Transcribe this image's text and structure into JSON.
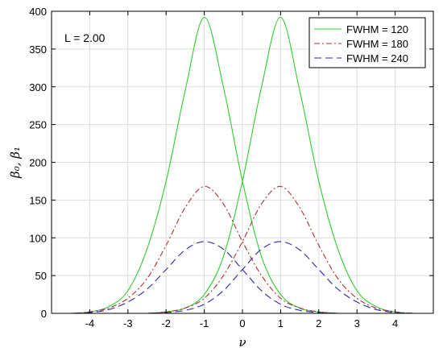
{
  "chart_data": {
    "type": "line",
    "title": "",
    "xlabel": "ν",
    "ylabel": "β₀, β₁",
    "xlim": [
      -5,
      5
    ],
    "ylim": [
      0,
      400
    ],
    "xticks": [
      -4,
      -3,
      -2,
      -1,
      0,
      1,
      2,
      3,
      4
    ],
    "yticks": [
      0,
      50,
      100,
      150,
      200,
      250,
      300,
      350,
      400
    ],
    "grid": true,
    "legend_position": "top-right",
    "annotation": "L = 2.00",
    "series": [
      {
        "name": "FWHM = 120",
        "color": "#33cc33",
        "dash": "solid",
        "curves": [
          {
            "x": [
              -5,
              -4.5,
              -4,
              -3.5,
              -3,
              -2.5,
              -2,
              -1.5,
              -1,
              -0.5,
              0,
              0.5,
              1,
              1.5,
              2,
              2.5,
              3,
              3.5,
              4,
              4.5,
              5
            ],
            "y": [
              0,
              0,
              2,
              9,
              30,
              85,
              175,
              295,
              392,
              300,
              175,
              75,
              25,
              7,
              2,
              0,
              0,
              0,
              0,
              0,
              0
            ]
          },
          {
            "x": [
              -5,
              -4.5,
              -4,
              -3.5,
              -3,
              -2.5,
              -2,
              -1.5,
              -1,
              -0.5,
              0,
              0.5,
              1,
              1.5,
              2,
              2.5,
              3,
              3.5,
              4,
              4.5,
              5
            ],
            "y": [
              0,
              0,
              0,
              0,
              0,
              0,
              2,
              7,
              25,
              75,
              175,
              300,
              392,
              295,
              175,
              85,
              30,
              9,
              2,
              0,
              0
            ]
          }
        ]
      },
      {
        "name": "FWHM = 180",
        "color": "#b03030",
        "dash": "dashdot",
        "curves": [
          {
            "x": [
              -5,
              -4.5,
              -4,
              -3.5,
              -3,
              -2.5,
              -2,
              -1.5,
              -1,
              -0.5,
              0,
              0.5,
              1,
              1.5,
              2,
              2.5,
              3,
              3.5,
              4,
              4.5,
              5
            ],
            "y": [
              0,
              0,
              2,
              7,
              20,
              46,
              90,
              140,
              168,
              145,
              95,
              50,
              20,
              7,
              2,
              0,
              0,
              0,
              0,
              0,
              0
            ]
          },
          {
            "x": [
              -5,
              -4.5,
              -4,
              -3.5,
              -3,
              -2.5,
              -2,
              -1.5,
              -1,
              -0.5,
              0,
              0.5,
              1,
              1.5,
              2,
              2.5,
              3,
              3.5,
              4,
              4.5,
              5
            ],
            "y": [
              0,
              0,
              0,
              0,
              0,
              0,
              2,
              7,
              20,
              50,
              95,
              145,
              168,
              140,
              90,
              46,
              20,
              7,
              2,
              0,
              0
            ]
          }
        ]
      },
      {
        "name": "FWHM = 240",
        "color": "#2a2ab0",
        "dash": "dashed",
        "curves": [
          {
            "x": [
              -5,
              -4.5,
              -4,
              -3.5,
              -3,
              -2.5,
              -2,
              -1.5,
              -1,
              -0.5,
              0,
              0.5,
              1,
              1.5,
              2,
              2.5,
              3,
              3.5,
              4,
              4.5,
              5
            ],
            "y": [
              0,
              0,
              1,
              5,
              15,
              32,
              58,
              84,
              95,
              85,
              58,
              30,
              12,
              4,
              1,
              0,
              0,
              0,
              0,
              0,
              0
            ]
          },
          {
            "x": [
              -5,
              -4.5,
              -4,
              -3.5,
              -3,
              -2.5,
              -2,
              -1.5,
              -1,
              -0.5,
              0,
              0.5,
              1,
              1.5,
              2,
              2.5,
              3,
              3.5,
              4,
              4.5,
              5
            ],
            "y": [
              0,
              0,
              0,
              0,
              0,
              0,
              1,
              4,
              12,
              30,
              58,
              85,
              95,
              84,
              58,
              32,
              15,
              5,
              1,
              0,
              0
            ]
          }
        ]
      }
    ]
  }
}
